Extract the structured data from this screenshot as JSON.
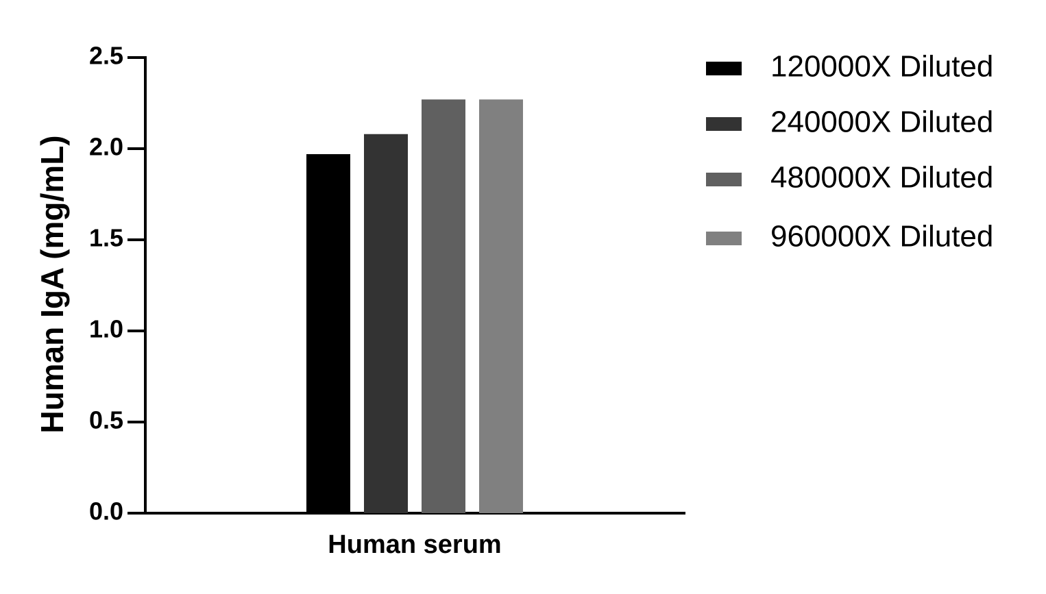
{
  "chart_data": {
    "type": "bar",
    "y_label": "Human IgA (mg/mL)",
    "categories": [
      "Human serum"
    ],
    "series": [
      {
        "name": "120000X Diluted",
        "color": "#000000",
        "values": [
          1.97
        ]
      },
      {
        "name": "240000X Diluted",
        "color": "#333333",
        "values": [
          2.08
        ]
      },
      {
        "name": "480000X Diluted",
        "color": "#606060",
        "values": [
          2.27
        ]
      },
      {
        "name": "960000X Diluted",
        "color": "#808080",
        "values": [
          2.27
        ]
      }
    ],
    "ylim": [
      0,
      2.5
    ],
    "yticks": [
      {
        "value": 0,
        "label": "0.0"
      },
      0.5,
      {
        "value": 1,
        "label": "1.0"
      },
      1.5,
      {
        "value": 2,
        "label": "2.0"
      },
      2.5
    ],
    "grid": false,
    "legend": "right"
  }
}
